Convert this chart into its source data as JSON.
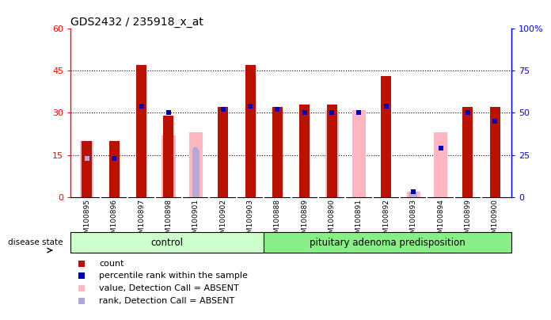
{
  "title": "GDS2432 / 235918_x_at",
  "samples": [
    "GSM100895",
    "GSM100896",
    "GSM100897",
    "GSM100898",
    "GSM100901",
    "GSM100902",
    "GSM100903",
    "GSM100888",
    "GSM100889",
    "GSM100890",
    "GSM100891",
    "GSM100892",
    "GSM100893",
    "GSM100894",
    "GSM100899",
    "GSM100900"
  ],
  "red_count": [
    20,
    20,
    47,
    29,
    0,
    32,
    47,
    32,
    33,
    33,
    0,
    43,
    0,
    0,
    32,
    32
  ],
  "blue_rank_pct": [
    23,
    23,
    54,
    50,
    28,
    52,
    54,
    52,
    50,
    50,
    50,
    54,
    3,
    29,
    50,
    45
  ],
  "blue_is_absent": [
    true,
    false,
    false,
    false,
    true,
    false,
    false,
    false,
    false,
    false,
    false,
    false,
    false,
    false,
    false,
    false
  ],
  "pink_value": [
    20,
    0,
    0,
    22,
    23,
    0,
    0,
    0,
    0,
    31,
    31,
    0,
    2,
    23,
    0,
    0
  ],
  "lightblue_rank_pct": [
    23,
    0,
    0,
    0,
    28,
    0,
    0,
    0,
    0,
    0,
    0,
    0,
    3,
    0,
    0,
    0
  ],
  "control_count": 7,
  "ylim_left": [
    0,
    60
  ],
  "ylim_right": [
    0,
    100
  ],
  "yticks_left": [
    0,
    15,
    30,
    45,
    60
  ],
  "ytick_labels_left": [
    "0",
    "15",
    "30",
    "45",
    "60"
  ],
  "yticks_right": [
    0,
    25,
    50,
    75,
    100
  ],
  "ytick_labels_right": [
    "0",
    "25",
    "50",
    "75",
    "100%"
  ],
  "red_color": "#BB1100",
  "blue_color": "#0000BB",
  "pink_color": "#FFB6C1",
  "lightblue_color": "#AAAADD",
  "gray_color": "#CCCCCC",
  "control_bg": "#CCFFCC",
  "disease_bg": "#88EE88",
  "disease_label1": "control",
  "disease_label2": "pituitary adenoma predisposition",
  "legend_items": [
    "count",
    "percentile rank within the sample",
    "value, Detection Call = ABSENT",
    "rank, Detection Call = ABSENT"
  ],
  "legend_colors": [
    "#BB1100",
    "#0000BB",
    "#FFB6C1",
    "#AAAADD"
  ]
}
